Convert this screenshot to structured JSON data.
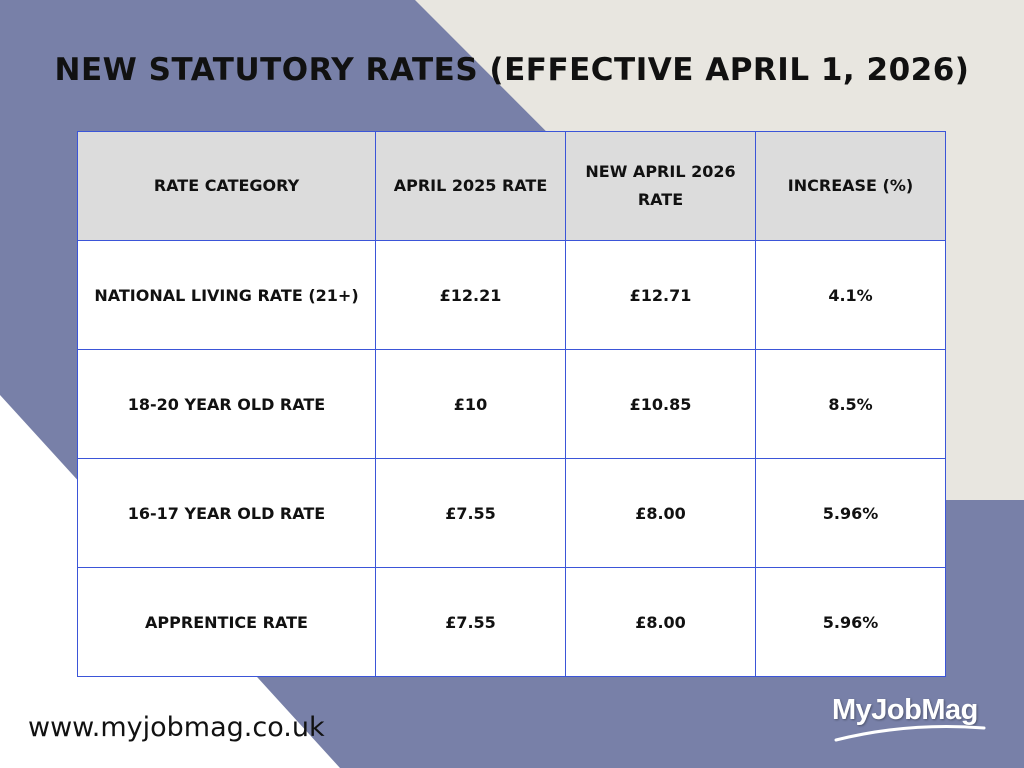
{
  "colors": {
    "background_light": "#e8e6e0",
    "background_accent": "#7880a8",
    "header_fill": "#dcdcdc",
    "cell_fill": "#ffffff",
    "table_border": "#3b55d8"
  },
  "title": "NEW STATUTORY RATES (EFFECTIVE APRIL 1, 2026)",
  "table": {
    "headers": [
      "RATE CATEGORY",
      "APRIL 2025 RATE",
      "NEW APRIL 2026 RATE",
      "INCREASE (%)"
    ],
    "rows": [
      [
        "NATIONAL LIVING RATE (21+)",
        "£12.21",
        "£12.71",
        "4.1%"
      ],
      [
        "18-20 YEAR OLD RATE",
        "£10",
        "£10.85",
        "8.5%"
      ],
      [
        "16-17 YEAR OLD RATE",
        "£7.55",
        "£8.00",
        "5.96%"
      ],
      [
        "APPRENTICE RATE",
        "£7.55",
        "£8.00",
        "5.96%"
      ]
    ]
  },
  "footer": {
    "url": "www.myjobmag.co.uk",
    "logo_text": "MyJobMag"
  }
}
